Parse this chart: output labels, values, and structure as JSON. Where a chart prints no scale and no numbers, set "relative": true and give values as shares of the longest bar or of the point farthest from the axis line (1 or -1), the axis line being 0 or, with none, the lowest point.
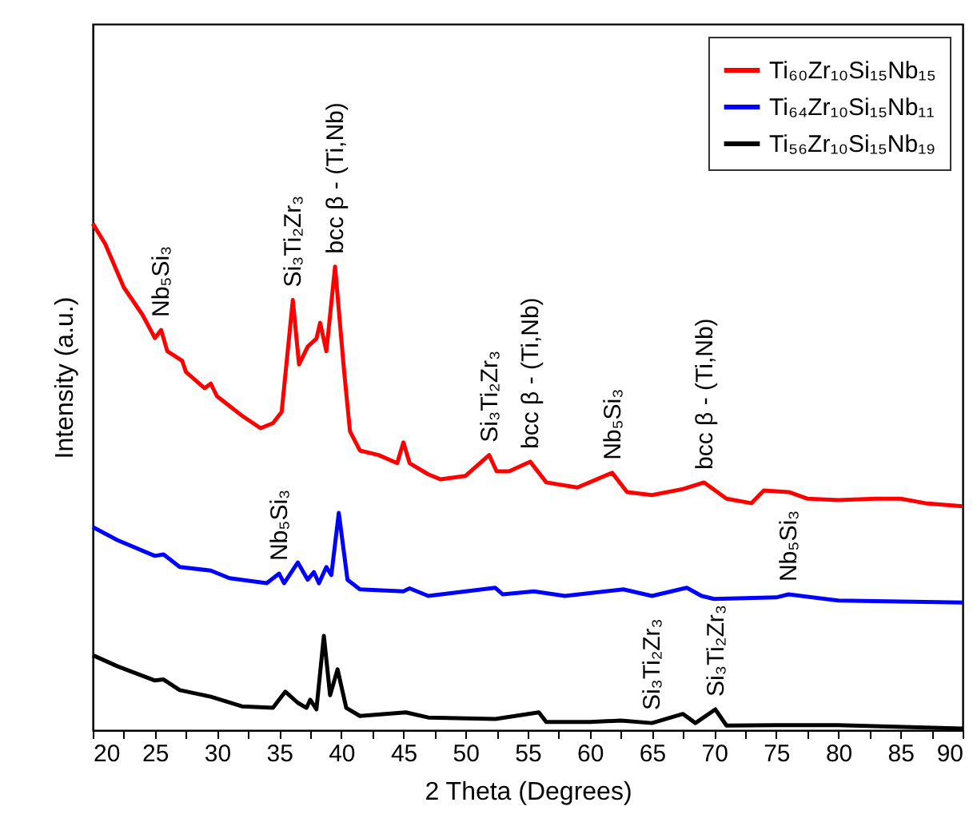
{
  "chart_data": {
    "type": "line",
    "xlabel": "2 Theta (Degrees)",
    "ylabel": "Intensity (a.u.)",
    "relative": true,
    "legend": "top right",
    "grid": false,
    "marker": "none",
    "line_style": "solid",
    "xlim": [
      20,
      90
    ],
    "xticks": [
      20,
      {
        "value": 22.5,
        "label": null
      },
      25,
      {
        "value": 27.5,
        "label": null
      },
      30,
      {
        "value": 32.5,
        "label": null
      },
      35,
      {
        "value": 37.5,
        "label": null
      },
      40,
      {
        "value": 42.5,
        "label": null
      },
      45,
      {
        "value": 47.5,
        "label": null
      },
      50,
      {
        "value": 52.5,
        "label": null
      },
      55,
      {
        "value": 57.5,
        "label": null
      },
      60,
      {
        "value": 62.5,
        "label": null
      },
      65,
      {
        "value": 67.5,
        "label": null
      },
      70,
      {
        "value": 72.5,
        "label": null
      },
      75,
      {
        "value": 77.5,
        "label": null
      },
      80,
      {
        "value": 82.5,
        "label": null
      },
      85,
      {
        "value": 87.5,
        "label": null
      },
      90
    ],
    "series": [
      {
        "name": "Ti₆₀Zr₁₀Si₁₅Nb₁₅",
        "color": "#ff0000",
        "x": [
          20,
          21,
          22.5,
          24,
          25,
          25.5,
          26,
          27.2,
          27.5,
          29,
          29.5,
          30,
          32,
          33.5,
          34.5,
          35.2,
          35.6,
          36.1,
          36.6,
          37.3,
          38,
          38.3,
          38.8,
          39.5,
          40.2,
          40.7,
          41.5,
          43,
          44.5,
          45,
          45.5,
          47,
          48,
          50,
          51.9,
          52.5,
          53.5,
          55.2,
          56.5,
          59,
          61.8,
          63,
          65,
          67.5,
          69.2,
          71,
          73,
          74,
          76,
          77.5,
          80,
          83,
          85,
          87,
          90
        ],
        "values": [
          1.0,
          0.96,
          0.874,
          0.82,
          0.774,
          0.79,
          0.748,
          0.729,
          0.707,
          0.675,
          0.684,
          0.659,
          0.621,
          0.596,
          0.606,
          0.628,
          0.726,
          0.849,
          0.722,
          0.757,
          0.773,
          0.804,
          0.748,
          0.915,
          0.716,
          0.59,
          0.552,
          0.543,
          0.527,
          0.568,
          0.527,
          0.505,
          0.495,
          0.502,
          0.543,
          0.511,
          0.511,
          0.53,
          0.489,
          0.479,
          0.508,
          0.47,
          0.464,
          0.476,
          0.489,
          0.457,
          0.448,
          0.473,
          0.47,
          0.457,
          0.454,
          0.457,
          0.457,
          0.448,
          0.442
        ]
      },
      {
        "name": "Ti₆₄Zr₁₀Si₁₅Nb₁₁",
        "color": "#0000ff",
        "x": [
          20,
          22,
          25,
          25.7,
          27,
          29.5,
          31,
          34,
          35,
          35.4,
          36.5,
          37.3,
          37.8,
          38.2,
          38.8,
          39.2,
          39.8,
          40.5,
          41.5,
          45,
          45.5,
          47,
          52.4,
          53,
          55.5,
          58,
          62.7,
          65,
          67.8,
          69,
          70,
          75,
          76,
          80,
          90
        ],
        "values": [
          0.401,
          0.375,
          0.344,
          0.347,
          0.322,
          0.315,
          0.3,
          0.29,
          0.309,
          0.29,
          0.331,
          0.297,
          0.312,
          0.29,
          0.322,
          0.306,
          0.429,
          0.297,
          0.278,
          0.274,
          0.28,
          0.265,
          0.281,
          0.268,
          0.274,
          0.265,
          0.278,
          0.265,
          0.281,
          0.265,
          0.259,
          0.262,
          0.268,
          0.256,
          0.252
        ]
      },
      {
        "name": "Ti₅₆Zr₁₀Si₁₅Nb₁₉",
        "color": "#000000",
        "x": [
          20,
          22,
          25,
          25.7,
          27,
          29.5,
          32,
          34.5,
          35.5,
          36.5,
          37.2,
          37.5,
          38,
          38.6,
          39.1,
          39.7,
          40.4,
          41.5,
          45.2,
          47,
          52.4,
          55.9,
          56.5,
          60,
          62.5,
          65,
          67.5,
          68.5,
          70.1,
          71,
          75,
          80,
          90
        ],
        "values": [
          0.148,
          0.126,
          0.098,
          0.1,
          0.079,
          0.066,
          0.047,
          0.044,
          0.076,
          0.054,
          0.044,
          0.06,
          0.041,
          0.186,
          0.069,
          0.12,
          0.044,
          0.028,
          0.035,
          0.025,
          0.022,
          0.035,
          0.016,
          0.016,
          0.019,
          0.014,
          0.032,
          0.014,
          0.041,
          0.009,
          0.01,
          0.01,
          0.003
        ]
      }
    ],
    "annotations": [
      {
        "text": "Nb₅Si₃",
        "x": 25.5,
        "y": 0.79
      },
      {
        "text": "Si₃Ti₂Zr₃",
        "x": 36.1,
        "y": 0.849
      },
      {
        "text": "bcc β - (Ti,Nb)",
        "x": 39.5,
        "y": 0.915
      },
      {
        "text": "Si₃Ti₂Zr₃",
        "x": 51.9,
        "y": 0.543
      },
      {
        "text": "bcc β - (Ti,Nb)",
        "x": 55.2,
        "y": 0.53
      },
      {
        "text": "Nb₅Si₃",
        "x": 61.8,
        "y": 0.508
      },
      {
        "text": "bcc β - (Ti,Nb)",
        "x": 69.2,
        "y": 0.489
      },
      {
        "text": "Nb₅Si₃",
        "x": 35,
        "y": 0.309
      },
      {
        "text": "Nb₅Si₃",
        "x": 76,
        "y": 0.268
      },
      {
        "text": "Si₃Ti₂Zr₃",
        "x": 65,
        "y": 0.014
      },
      {
        "text": "Si₃Ti₂Zr₃",
        "x": 70.1,
        "y": 0.041
      }
    ]
  }
}
